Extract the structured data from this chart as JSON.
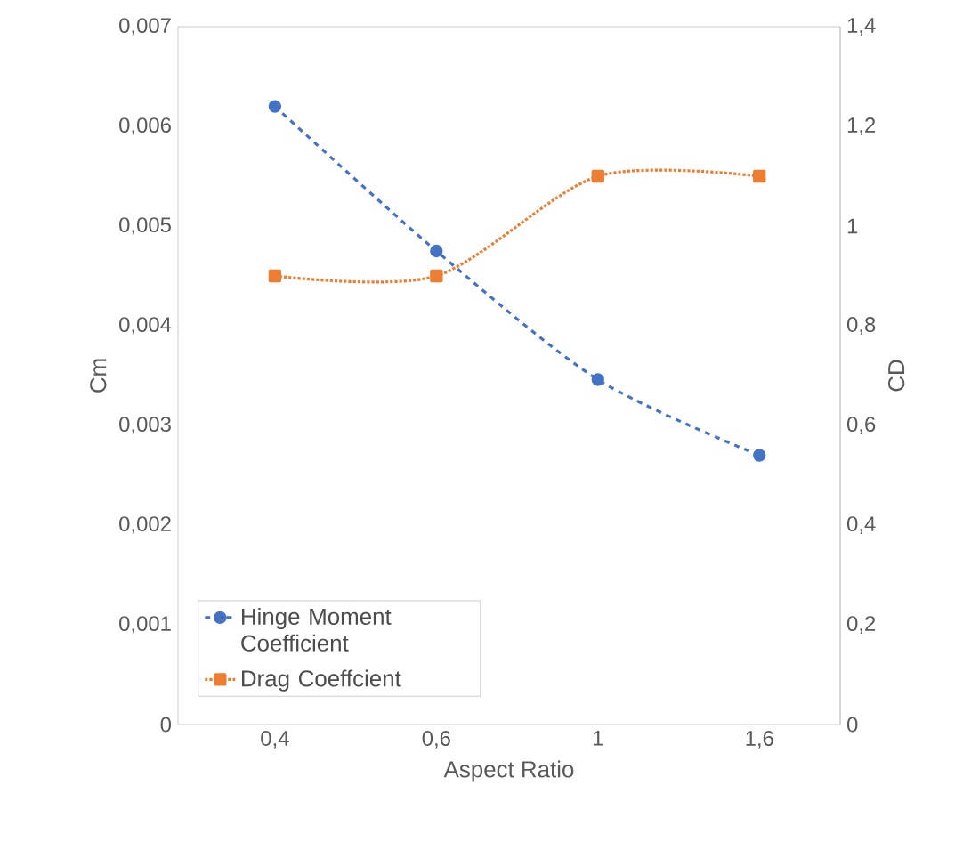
{
  "chart_data": {
    "type": "line",
    "xlabel": "Aspect Ratio",
    "ylabel": "Cm",
    "y2label": "CD",
    "categories": [
      "0,4",
      "0,6",
      "1",
      "1,6"
    ],
    "series": [
      {
        "name": "Hinge Moment Coefficient",
        "color": "#4472c4",
        "values": [
          0.0062,
          0.00475,
          0.00346,
          0.0027
        ],
        "marker": "circle",
        "line_style": "dashed"
      },
      {
        "name": "Drag Coeffcient",
        "color": "#ed7d31",
        "values": [
          0.9,
          0.9,
          1.1,
          1.1
        ],
        "axis": "y2",
        "marker": "square",
        "line_style": "dotted"
      }
    ],
    "ylim": [
      0,
      0.007
    ],
    "yticks": [
      0,
      {
        "value": 0.001,
        "label": "0,001"
      },
      {
        "value": 0.002,
        "label": "0,002"
      },
      {
        "value": 0.003,
        "label": "0,003"
      },
      {
        "value": 0.004,
        "label": "0,004"
      },
      {
        "value": 0.005,
        "label": "0,005"
      },
      {
        "value": 0.006,
        "label": "0,006"
      },
      {
        "value": 0.007,
        "label": "0,007"
      }
    ],
    "y2lim": [
      0,
      1.4
    ],
    "y2ticks": [
      0,
      {
        "value": 0.2,
        "label": "0,2"
      },
      {
        "value": 0.4,
        "label": "0,4"
      },
      {
        "value": 0.6,
        "label": "0,6"
      },
      {
        "value": 0.8,
        "label": "0,8"
      },
      1,
      {
        "value": 1.2,
        "label": "1,2"
      },
      {
        "value": 1.4,
        "label": "1,4"
      }
    ],
    "legend": "bottom left"
  }
}
